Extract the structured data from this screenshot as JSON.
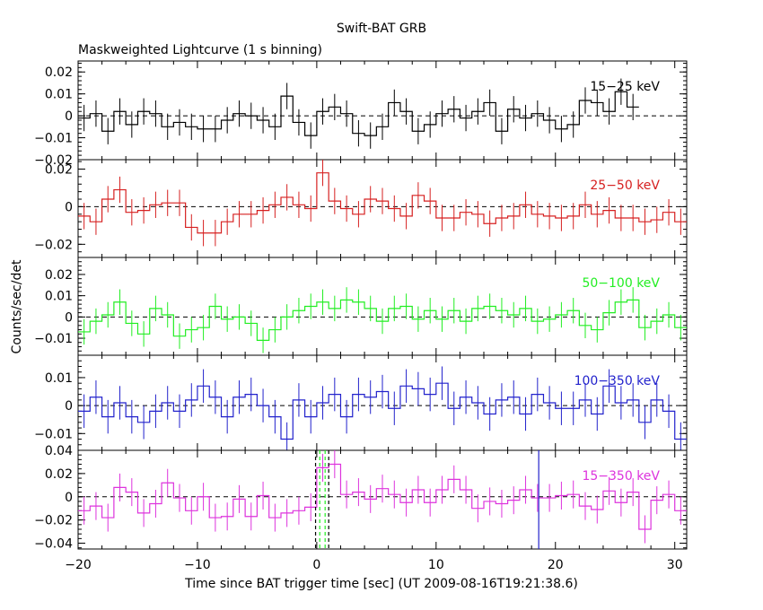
{
  "header": {
    "title": "Swift-BAT GRB",
    "subtitle": "Maskweighted Lightcurve (1 s binning)"
  },
  "axes": {
    "ylabel": "Counts/sec/det",
    "xlabel": "Time since BAT trigger time [sec] (UT 2009-08-16T19:21:38.6)",
    "xlim": [
      -20,
      31
    ],
    "xticks": [
      -20,
      -10,
      0,
      10,
      20,
      30
    ],
    "xtick_labels": [
      "−20",
      "−10",
      "0",
      "10",
      "20",
      "30"
    ]
  },
  "chart_data": [
    {
      "type": "line",
      "band": "15-25 keV",
      "label": "15−25 keV",
      "color": "#000000",
      "ylim": [
        -0.02,
        0.025
      ],
      "yticks": [
        -0.02,
        -0.01,
        0,
        0.01,
        0.02
      ],
      "ytick_labels": [
        "−0.02",
        "−0.01",
        "0",
        "0.01",
        "0.02"
      ],
      "x_start": -20,
      "bin_width": 1,
      "values": [
        -0.001,
        0.001,
        -0.007,
        0.002,
        -0.004,
        0.002,
        0.001,
        -0.005,
        -0.003,
        -0.005,
        -0.006,
        -0.006,
        -0.002,
        0.001,
        0,
        -0.002,
        -0.005,
        0.009,
        -0.003,
        -0.009,
        0.002,
        0.004,
        0.001,
        -0.008,
        -0.009,
        -0.005,
        0.006,
        0.002,
        -0.007,
        -0.004,
        0.001,
        0.003,
        -0.001,
        0.002,
        0.006,
        -0.007,
        0.003,
        -0.001,
        0.001,
        -0.002,
        -0.006,
        -0.004,
        0.007,
        0.006,
        0.002,
        0.011,
        0.004
      ],
      "error": 0.006,
      "dashed_zero": true
    },
    {
      "type": "line",
      "band": "25-50 keV",
      "label": "25−50 keV",
      "color": "#d62020",
      "ylim": [
        -0.027,
        0.025
      ],
      "yticks": [
        -0.02,
        0,
        0.02
      ],
      "ytick_labels": [
        "−0.02",
        "0",
        "0.02"
      ],
      "x_start": -20,
      "bin_width": 1,
      "values": [
        -0.005,
        -0.008,
        0.004,
        0.009,
        -0.003,
        -0.002,
        0.001,
        0.002,
        0.002,
        -0.011,
        -0.014,
        -0.014,
        -0.008,
        -0.004,
        -0.004,
        -0.002,
        0.001,
        0.005,
        0.001,
        -0.001,
        0.018,
        0.003,
        -0.001,
        -0.004,
        0.004,
        0.003,
        -0.001,
        -0.005,
        0.006,
        0.003,
        -0.006,
        -0.006,
        -0.003,
        -0.004,
        -0.009,
        -0.006,
        -0.005,
        0.001,
        -0.004,
        -0.005,
        -0.006,
        -0.005,
        0.001,
        -0.004,
        -0.002,
        -0.006,
        -0.006,
        -0.008,
        -0.007,
        -0.003,
        -0.008
      ],
      "error": 0.007,
      "dashed_zero": true
    },
    {
      "type": "line",
      "band": "50-100 keV",
      "label": "50−100 keV",
      "color": "#22ee22",
      "ylim": [
        -0.018,
        0.028
      ],
      "yticks": [
        -0.01,
        0,
        0.01,
        0.02
      ],
      "ytick_labels": [
        "−0.01",
        "0",
        "0.01",
        "0.02"
      ],
      "x_start": -20,
      "bin_width": 1,
      "values": [
        -0.007,
        -0.002,
        0.001,
        0.007,
        -0.003,
        -0.008,
        0.004,
        0.001,
        -0.009,
        -0.006,
        -0.005,
        0.005,
        -0.001,
        0,
        -0.003,
        -0.011,
        -0.006,
        0,
        0.003,
        0.005,
        0.007,
        0.004,
        0.008,
        0.007,
        0.004,
        -0.002,
        0.004,
        0.005,
        -0.001,
        0.003,
        -0.001,
        0.003,
        -0.002,
        0.004,
        0.005,
        0.003,
        0.001,
        0.004,
        -0.002,
        -0.001,
        0.001,
        0.003,
        -0.004,
        -0.006,
        0.002,
        0.007,
        0.008,
        -0.005,
        -0.002,
        0.001,
        -0.005
      ],
      "error": 0.006,
      "dashed_zero": true
    },
    {
      "type": "line",
      "band": "100-350 keV",
      "label": "100−350 keV",
      "color": "#2222cc",
      "ylim": [
        -0.016,
        0.018
      ],
      "yticks": [
        -0.01,
        0,
        0.01
      ],
      "ytick_labels": [
        "−0.01",
        "0",
        "0.01"
      ],
      "x_start": -20,
      "bin_width": 1,
      "values": [
        -0.002,
        0.003,
        -0.004,
        0.001,
        -0.004,
        -0.006,
        -0.002,
        0.001,
        -0.002,
        0.002,
        0.007,
        0.003,
        -0.004,
        0.003,
        0.004,
        0,
        -0.004,
        -0.012,
        0.002,
        -0.004,
        0.001,
        0.004,
        -0.004,
        0.004,
        0.003,
        0.005,
        -0.001,
        0.007,
        0.006,
        0.004,
        0.008,
        -0.001,
        0.003,
        0.001,
        -0.003,
        0.002,
        0.003,
        -0.003,
        0.004,
        0.001,
        -0.001,
        -0.001,
        0.002,
        -0.003,
        0.007,
        0.001,
        0.002,
        -0.006,
        0.002,
        -0.002,
        -0.012
      ],
      "error": 0.006,
      "dashed_zero": true
    },
    {
      "type": "line",
      "band": "15-350 keV",
      "label": "15−350 keV",
      "color": "#dd33dd",
      "ylim": [
        -0.045,
        0.04
      ],
      "yticks": [
        -0.04,
        -0.02,
        0,
        0.02,
        0.04
      ],
      "ytick_labels": [
        "−0.04",
        "−0.02",
        "0",
        "0.02",
        "0.04"
      ],
      "x_start": -20,
      "bin_width": 1,
      "values": [
        -0.012,
        -0.008,
        -0.018,
        0.008,
        0.004,
        -0.014,
        -0.006,
        0.012,
        -0.001,
        -0.012,
        0,
        -0.018,
        -0.017,
        -0.002,
        -0.017,
        0.001,
        -0.018,
        -0.014,
        -0.012,
        -0.009,
        0.025,
        0.028,
        0.002,
        0.004,
        -0.002,
        0.007,
        0.002,
        -0.005,
        0.006,
        -0.005,
        0.006,
        0.015,
        0.006,
        -0.01,
        -0.004,
        -0.006,
        -0.003,
        0.006,
        -0.001,
        -0.001,
        0.001,
        0.002,
        -0.008,
        -0.011,
        0.005,
        -0.005,
        0.004,
        -0.028,
        -0.003,
        0.002,
        -0.012
      ],
      "error": 0.012,
      "dashed_zero": true,
      "markers": [
        {
          "x": -0.1,
          "color": "#000000",
          "style": "dashed"
        },
        {
          "x": 0.25,
          "color": "#22ee22",
          "style": "dashed"
        },
        {
          "x": 0.7,
          "color": "#22ee22",
          "style": "dashed"
        },
        {
          "x": 1.0,
          "color": "#000000",
          "style": "dashed"
        },
        {
          "x": 18.6,
          "color": "#2222cc",
          "style": "solid"
        }
      ]
    }
  ]
}
